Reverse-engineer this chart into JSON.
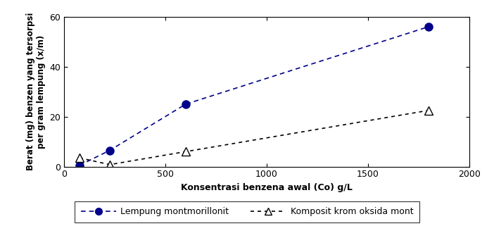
{
  "series1_x": [
    75,
    225,
    600,
    1800
  ],
  "series1_y": [
    0.5,
    6.5,
    25,
    56
  ],
  "series1_color": "#00008B",
  "series1_label": "Lempung montmorillonit",
  "series2_x": [
    75,
    225,
    600,
    1800
  ],
  "series2_y": [
    3.5,
    0.8,
    6,
    22.5
  ],
  "series2_color": "#000000",
  "series2_label": "Komposit krom oksida mont",
  "xlabel": "Konsentrasi benzena awal (Co) g/L",
  "ylabel": "Berat (mg) benzen yang tersorpsi\nper gram lempung (x/m)",
  "xlim": [
    0,
    2000
  ],
  "ylim": [
    0,
    60
  ],
  "xticks": [
    0,
    500,
    1000,
    1500,
    2000
  ],
  "yticks": [
    0,
    20,
    40,
    60
  ]
}
